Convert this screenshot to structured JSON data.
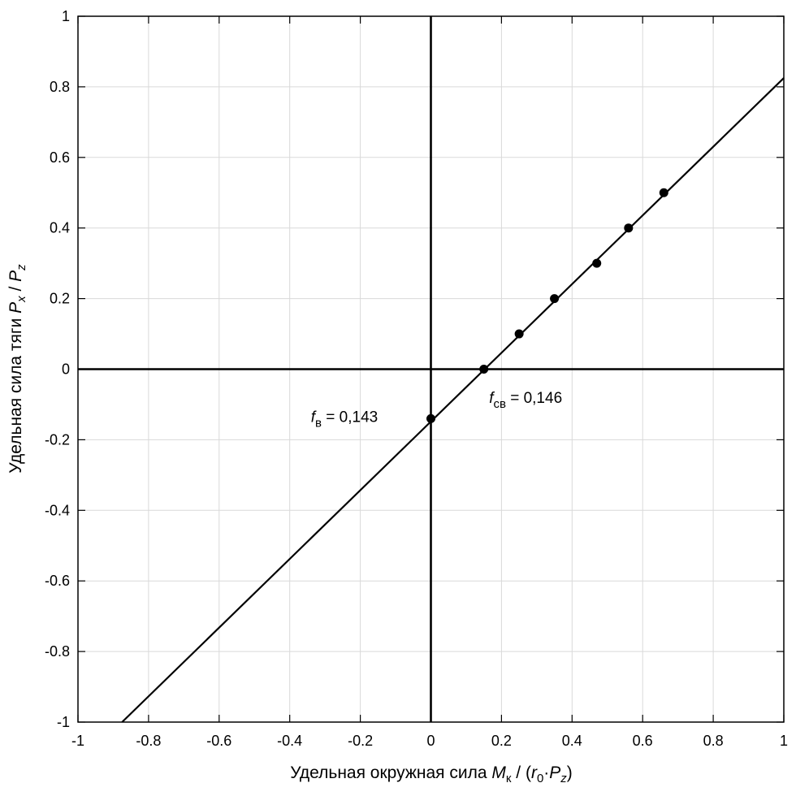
{
  "chart_data": {
    "type": "scatter",
    "title": "",
    "xlim": [
      -1,
      1
    ],
    "ylim": [
      -1,
      1
    ],
    "grid": true,
    "x_ticks": [
      -1,
      -0.8,
      -0.6,
      -0.4,
      -0.2,
      0,
      0.2,
      0.4,
      0.6,
      0.8,
      1
    ],
    "y_ticks": [
      -1,
      -0.8,
      -0.6,
      -0.4,
      -0.2,
      0,
      0.2,
      0.4,
      0.6,
      0.8,
      1
    ],
    "x_tick_labels": [
      "-1",
      "-0.8",
      "-0.6",
      "-0.4",
      "-0.2",
      "0",
      "0.2",
      "0.4",
      "0.6",
      "0.8",
      "1"
    ],
    "y_tick_labels": [
      "-1",
      "-0.8",
      "-0.6",
      "-0.4",
      "-0.2",
      "0",
      "0.2",
      "0.4",
      "0.6",
      "0.8",
      "1"
    ],
    "xlabel": {
      "text": "Удельная окружная сила ",
      "sym_m": "M",
      "sub_k": "к",
      "slash_open": " / (",
      "sym_r": "r",
      "sub_0": "0",
      "dot": "·",
      "sym_p": "P",
      "sub_z": "z",
      "close": ")"
    },
    "ylabel": {
      "text": "Удельная сила тяги ",
      "sym_px": "P",
      "sub_x": "x",
      "slash": " / ",
      "sym_pz": "P",
      "sub_z": "z"
    },
    "points": [
      {
        "x": 0.0,
        "y": -0.14
      },
      {
        "x": 0.15,
        "y": 0.0
      },
      {
        "x": 0.25,
        "y": 0.1
      },
      {
        "x": 0.35,
        "y": 0.2
      },
      {
        "x": 0.47,
        "y": 0.3
      },
      {
        "x": 0.56,
        "y": 0.4
      },
      {
        "x": 0.66,
        "y": 0.5
      }
    ],
    "fit_line": {
      "x": [
        -0.875,
        1.0
      ],
      "y": [
        -1.0,
        0.825
      ]
    },
    "annotations": [
      {
        "sym": "f",
        "sub": "в",
        "text": " = 0,143",
        "x": -0.34,
        "y": -0.15
      },
      {
        "sym": "f",
        "sub": "св",
        "text": " = 0,146",
        "x": 0.165,
        "y": -0.095
      }
    ]
  }
}
